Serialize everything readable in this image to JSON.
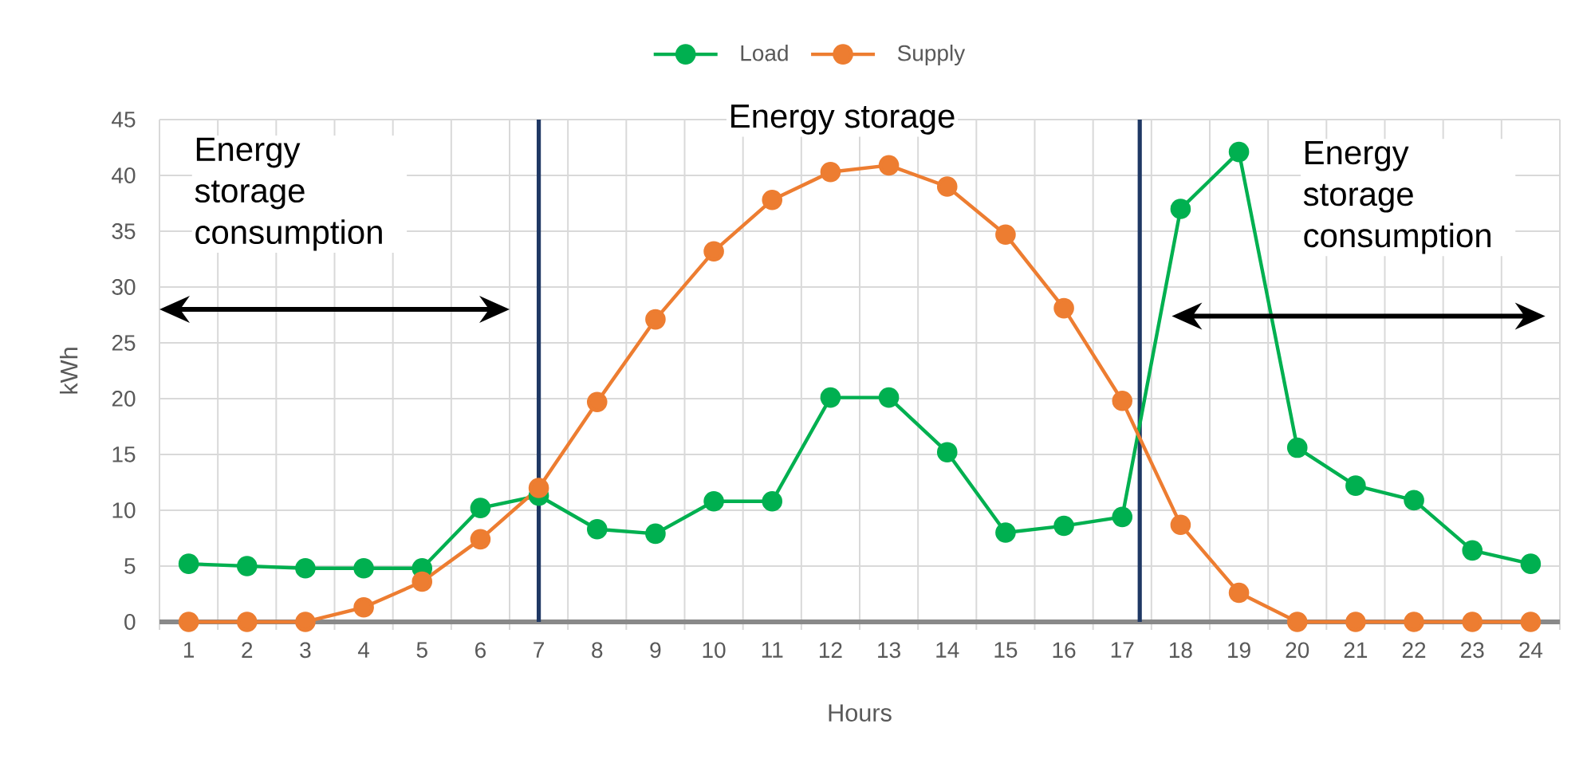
{
  "chart_data": {
    "type": "line",
    "xlabel": "Hours",
    "ylabel": "kWh",
    "x": [
      1,
      2,
      3,
      4,
      5,
      6,
      7,
      8,
      9,
      10,
      11,
      12,
      13,
      14,
      15,
      16,
      17,
      18,
      19,
      20,
      21,
      22,
      23,
      24
    ],
    "xlim": [
      0.5,
      24.5
    ],
    "xticks": [
      1,
      2,
      3,
      4,
      5,
      6,
      7,
      8,
      9,
      10,
      11,
      12,
      13,
      14,
      15,
      16,
      17,
      18,
      19,
      20,
      21,
      22,
      23,
      24
    ],
    "ylim": [
      0,
      45
    ],
    "yticks": [
      0,
      5,
      10,
      15,
      20,
      25,
      30,
      35,
      40,
      45
    ],
    "grid": true,
    "legend": "top",
    "marker": "circle",
    "line_style": "solid",
    "series": [
      {
        "name": "Load",
        "color": "#00b050",
        "values": [
          5.2,
          5.0,
          4.8,
          4.8,
          4.8,
          10.2,
          11.3,
          8.3,
          7.9,
          10.8,
          10.8,
          20.1,
          20.1,
          15.2,
          8.0,
          8.6,
          9.4,
          37.0,
          42.1,
          15.6,
          12.2,
          10.9,
          6.4,
          5.2
        ]
      },
      {
        "name": "Supply",
        "color": "#ed7d31",
        "values": [
          0,
          0,
          0,
          1.3,
          3.6,
          7.4,
          12.0,
          19.7,
          27.1,
          33.2,
          37.8,
          40.3,
          40.9,
          39.0,
          34.7,
          28.1,
          19.8,
          8.7,
          2.6,
          0,
          0,
          0,
          0,
          0
        ]
      }
    ],
    "ref_lines": [
      {
        "axis": "x",
        "value": 7,
        "color": "#1f3864"
      },
      {
        "axis": "x",
        "value": 17.3,
        "color": "#1f3864"
      }
    ],
    "annotations": [
      "Energy storage consumption",
      "Energy storage",
      "Energy storage consumption"
    ]
  }
}
